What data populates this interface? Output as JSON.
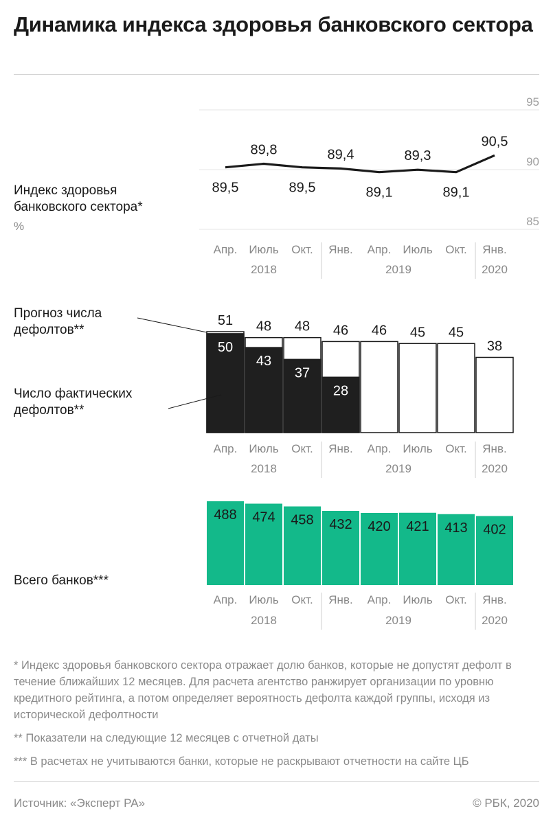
{
  "title": "Динамика индекса здоровья банковского сектора",
  "labels": {
    "index": "Индекс здоровья\nбанковского сектора*",
    "index_unit": "%",
    "forecast": "Прогноз числа\nдефолтов**",
    "actual": "Число фактических\nдефолтов**",
    "total": "Всего банков***"
  },
  "footnotes": [
    "* Индекс здоровья банковского сектора отражает долю банков, которые не допустят дефолт в течение ближайших 12 месяцев. Для расчета агентство ранжирует организации по уровню кредитного рейтинга, а потом определяет вероятность дефолта каждой группы, исходя из исторической дефолтности",
    "** Показатели на следующие 12 месяцев с отчетной даты",
    "*** В расчетах не учитываются банки, которые не раскрывают отчетности на сайте ЦБ"
  ],
  "source": "Источник: «Эксперт РА»",
  "copyright": "© РБК, 2020",
  "chart_data": [
    {
      "type": "line",
      "categories": [
        "Апр.",
        "Июль",
        "Окт.",
        "Янв.",
        "Апр.",
        "Июль",
        "Окт.",
        "Янв."
      ],
      "years": [
        {
          "label": "2018",
          "start": 0,
          "end": 2
        },
        {
          "label": "2019",
          "start": 3,
          "end": 6
        },
        {
          "label": "2020",
          "start": 7,
          "end": 7
        }
      ],
      "series": [
        {
          "name": "Индекс здоровья банковского сектора*",
          "values": [
            89.5,
            89.8,
            89.5,
            89.4,
            89.1,
            89.3,
            89.1,
            90.5
          ]
        }
      ],
      "value_labels": [
        "89,5",
        "89,8",
        "89,5",
        "89,4",
        "89,1",
        "89,3",
        "89,1",
        "90,5"
      ],
      "label_positions": [
        "below",
        "above",
        "below",
        "above",
        "below",
        "above",
        "below",
        "above"
      ],
      "ylim": [
        85,
        95
      ],
      "yticks": [
        85,
        90,
        95
      ],
      "ylabel": "%",
      "color": "#1a1a1a"
    },
    {
      "type": "bar",
      "categories": [
        "Апр.",
        "Июль",
        "Окт.",
        "Янв.",
        "Апр.",
        "Июль",
        "Окт.",
        "Янв."
      ],
      "series": [
        {
          "name": "Прогноз числа дефолтов**",
          "values": [
            51,
            48,
            48,
            46,
            46,
            45,
            45,
            38
          ]
        },
        {
          "name": "Число фактических дефолтов**",
          "values": [
            50,
            43,
            37,
            28,
            null,
            null,
            null,
            null
          ]
        }
      ],
      "ylim": [
        0,
        51
      ],
      "colors": {
        "forecast_fill": "#ffffff",
        "forecast_stroke": "#1a1a1a",
        "actual": "#1f1f1f"
      }
    },
    {
      "type": "bar",
      "categories": [
        "Апр.",
        "Июль",
        "Окт.",
        "Янв.",
        "Апр.",
        "Июль",
        "Окт.",
        "Янв."
      ],
      "series": [
        {
          "name": "Всего банков***",
          "values": [
            488,
            474,
            458,
            432,
            420,
            421,
            413,
            402
          ]
        }
      ],
      "ylim": [
        0,
        488
      ],
      "color": "#13b98a"
    }
  ]
}
